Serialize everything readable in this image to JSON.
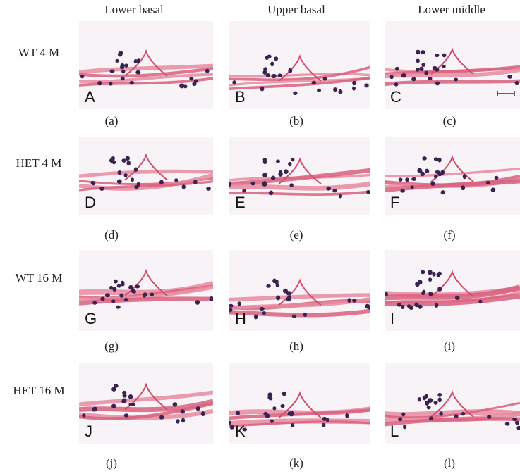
{
  "columns": [
    "Lower basal",
    "Upper basal",
    "Lower middle"
  ],
  "rows": [
    {
      "label": "WT 4 M",
      "panels": [
        {
          "letter": "A",
          "caption": "(a)"
        },
        {
          "letter": "B",
          "caption": "(b)"
        },
        {
          "letter": "C",
          "caption": "(c)"
        }
      ]
    },
    {
      "label": "HET 4 M",
      "panels": [
        {
          "letter": "D",
          "caption": "(d)"
        },
        {
          "letter": "E",
          "caption": "(e)"
        },
        {
          "letter": "F",
          "caption": "(f)"
        }
      ]
    },
    {
      "label": "WT 16 M",
      "panels": [
        {
          "letter": "G",
          "caption": "(g)"
        },
        {
          "letter": "H",
          "caption": "(h)"
        },
        {
          "letter": "I",
          "caption": "(i)"
        }
      ]
    },
    {
      "label": "HET 16 M",
      "panels": [
        {
          "letter": "J",
          "caption": "(j)"
        },
        {
          "letter": "K",
          "caption": "(k)"
        },
        {
          "letter": "L",
          "caption": "(l)"
        }
      ]
    }
  ]
}
